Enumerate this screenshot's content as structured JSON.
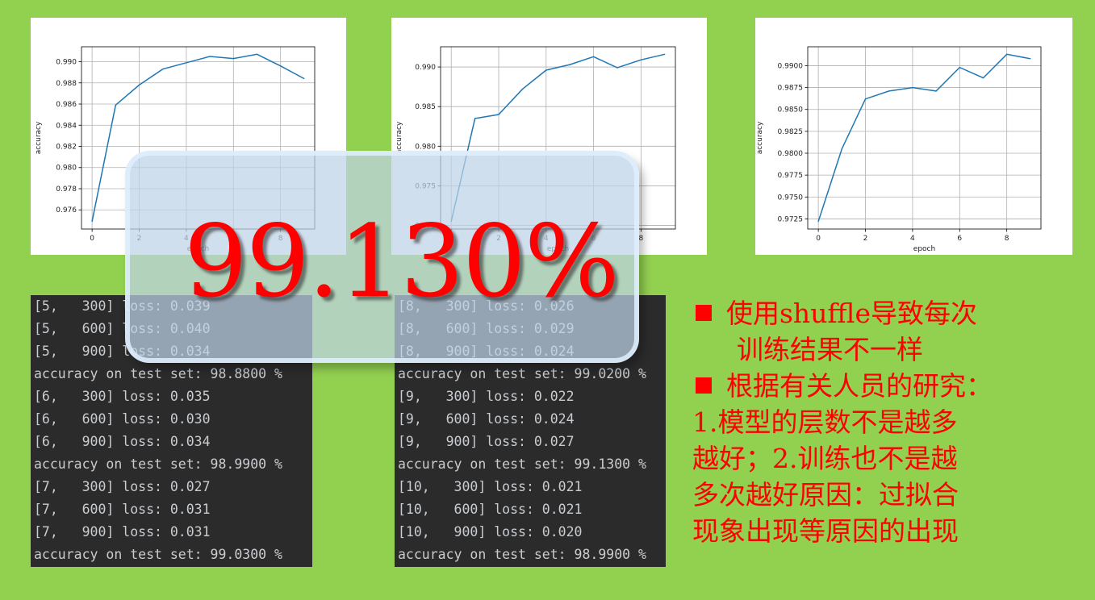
{
  "colors": {
    "background": "#92d050",
    "line": "#1f77b4",
    "accent": "#ff0000",
    "console_bg": "#2b2b2b"
  },
  "chart_data": [
    {
      "type": "line",
      "xlabel": "epoch",
      "ylabel": "accuracy",
      "x": [
        0,
        1,
        2,
        3,
        4,
        5,
        6,
        7,
        8,
        9
      ],
      "values": [
        0.9749,
        0.9859,
        0.9878,
        0.9893,
        0.9899,
        0.9905,
        0.9903,
        0.9907,
        0.9896,
        0.9884
      ],
      "xticks": [
        0,
        2,
        4,
        6,
        8
      ],
      "yticks": [
        0.976,
        0.978,
        0.98,
        0.982,
        0.984,
        0.986,
        0.988,
        0.99
      ],
      "ytick_labels": [
        "0.976",
        "0.978",
        "0.980",
        "0.982",
        "0.984",
        "0.986",
        "0.988",
        "0.990"
      ],
      "ylim": [
        0.9749,
        0.9907
      ],
      "grid": true
    },
    {
      "type": "line",
      "xlabel": "epoch",
      "ylabel": "accuracy",
      "x": [
        0,
        1,
        2,
        3,
        4,
        5,
        6,
        7,
        8,
        9
      ],
      "values": [
        0.9705,
        0.9835,
        0.984,
        0.9872,
        0.9896,
        0.9903,
        0.9913,
        0.9899,
        0.9909,
        0.9916
      ],
      "xticks": [
        0,
        2,
        4,
        6,
        8
      ],
      "yticks": [
        0.97,
        0.975,
        0.98,
        0.985,
        0.99
      ],
      "ytick_labels": [
        "0.970",
        "0.975",
        "0.980",
        "0.985",
        "0.990"
      ],
      "ylim": [
        0.9705,
        0.9916
      ],
      "grid": true
    },
    {
      "type": "line",
      "xlabel": "epoch",
      "ylabel": "accuracy",
      "x": [
        0,
        1,
        2,
        3,
        4,
        5,
        6,
        7,
        8,
        9
      ],
      "values": [
        0.9722,
        0.9805,
        0.9862,
        0.9871,
        0.9875,
        0.9871,
        0.9898,
        0.9886,
        0.9913,
        0.9908
      ],
      "xticks": [
        0,
        2,
        4,
        6,
        8
      ],
      "yticks": [
        0.9725,
        0.975,
        0.9775,
        0.98,
        0.9825,
        0.985,
        0.9875,
        0.99
      ],
      "ytick_labels": [
        "0.9725",
        "0.9750",
        "0.9775",
        "0.9800",
        "0.9825",
        "0.9850",
        "0.9875",
        "0.9900"
      ],
      "ylim": [
        0.9722,
        0.9913
      ],
      "grid": true
    }
  ],
  "console_left": [
    "[5,   300] loss: 0.039",
    "[5,   600] loss: 0.040",
    "[5,   900] loss: 0.034",
    "accuracy on test set: 98.8800 %",
    "[6,   300] loss: 0.035",
    "[6,   600] loss: 0.030",
    "[6,   900] loss: 0.034",
    "accuracy on test set: 98.9900 %",
    "[7,   300] loss: 0.027",
    "[7,   600] loss: 0.031",
    "[7,   900] loss: 0.031",
    "accuracy on test set: 99.0300 %"
  ],
  "console_right": [
    "[8,   300] loss: 0.026",
    "[8,   600] loss: 0.029",
    "[8,   900] loss: 0.024",
    "accuracy on test set: 99.0200 %",
    "[9,   300] loss: 0.022",
    "[9,   600] loss: 0.024",
    "[9,   900] loss: 0.027",
    "accuracy on test set: 99.1300 %",
    "[10,   300] loss: 0.021",
    "[10,   600] loss: 0.021",
    "[10,   900] loss: 0.020",
    "accuracy on test set: 98.9900 %"
  ],
  "headline": "99.130%",
  "notes": {
    "bullet1_line1": "使用shuffle导致每次",
    "bullet1_line2": "训练结果不一样",
    "bullet2": "根据有关人员的研究：",
    "lines": [
      "1.模型的层数不是越多",
      "越好；2.训练也不是越",
      "多次越好原因：过拟合",
      "现象出现等原因的出现"
    ]
  }
}
